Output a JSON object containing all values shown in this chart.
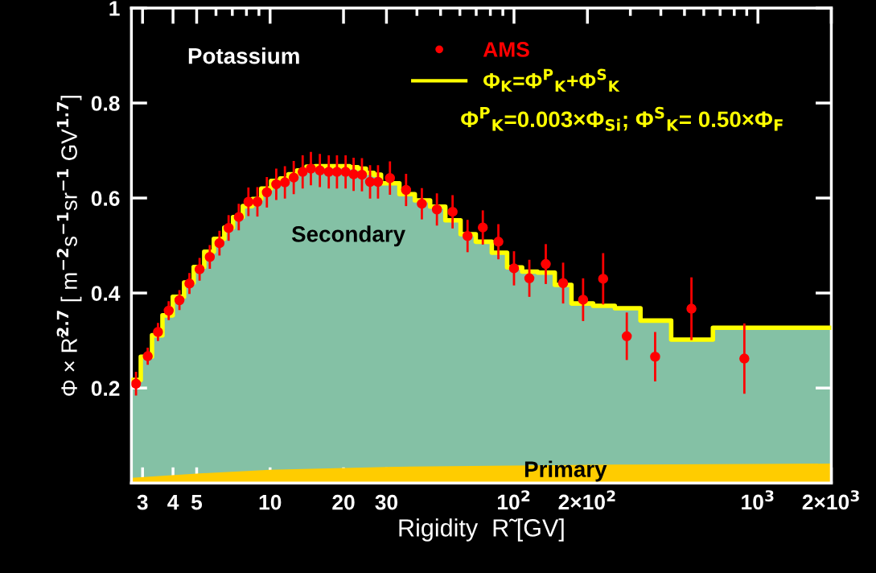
{
  "chart_data": {
    "type": "scatter",
    "xlabel": "Rigidity  R̃ [GV]",
    "ylabel": "Φ × R̃$^{2.7}$ [ m$^{−2}$s$^{−1}$sr$^{−1}$ GV$^{1.7}$]",
    "log": "x",
    "xlim": [
      2.7,
      2000
    ],
    "ylim": [
      0,
      1
    ],
    "xticks": [
      3,
      4,
      5,
      10,
      20,
      30,
      {
        "value": 100,
        "label": "10$^{2}$"
      },
      {
        "value": 200,
        "label": "2×10$^{2}$"
      },
      {
        "value": 1000,
        "label": "10$^{3}$"
      },
      {
        "value": 2000,
        "label": "2×10$^{3}$"
      }
    ],
    "yticks": [
      0.2,
      0.4,
      0.6,
      0.8,
      1
    ],
    "grid": false,
    "legend": "top",
    "annotations": [
      "Potassium",
      "Φ$^{P}$$_{K}$=0.003×Φ$_{Si}$; Φ$^{S}$$_{K}$= 0.50×Φ$_{F}$",
      "Secondary",
      "Primary"
    ],
    "series": [
      {
        "type": "area",
        "color": "#84c1a5",
        "x": [
          2.7,
          2.95,
          3.28,
          3.62,
          3.99,
          4.44,
          4.86,
          5.37,
          5.88,
          6.49,
          7.05,
          7.73,
          8.46,
          9.2,
          10.1,
          11.0,
          11.9,
          12.9,
          14.1,
          15.3,
          16.6,
          18.1,
          19.5,
          21.2,
          22.9,
          24.7,
          26.6,
          28.5,
          33.9,
          39.2,
          45.3,
          52.3,
          60.4,
          69.7,
          81.1,
          93.7,
          108,
          125,
          147,
          172,
          211,
          259,
          330,
          441,
          654,
          2000
        ],
        "values": [
          0.217,
          0.266,
          0.311,
          0.353,
          0.392,
          0.422,
          0.455,
          0.487,
          0.514,
          0.538,
          0.56,
          0.583,
          0.598,
          0.62,
          0.636,
          0.641,
          0.65,
          0.658,
          0.666,
          0.667,
          0.667,
          0.667,
          0.667,
          0.665,
          0.662,
          0.653,
          0.649,
          0.631,
          0.608,
          0.595,
          0.582,
          0.553,
          0.524,
          0.508,
          0.485,
          0.454,
          0.445,
          0.443,
          0.417,
          0.378,
          0.373,
          0.368,
          0.342,
          0.302,
          0.327,
          0.327
        ]
      },
      {
        "type": "area",
        "color": "#ffcc00",
        "x": [
          2.7,
          5,
          10,
          30,
          100,
          300,
          1000,
          2000
        ],
        "values": [
          0.011,
          0.02,
          0.028,
          0.034,
          0.037,
          0.039,
          0.04,
          0.041
        ]
      },
      {
        "type": "step",
        "name": "Φ$_{K}$=Φ$^{P}$$_{K}$+Φ$^{S}$$_{K}$",
        "color": "#ffff00",
        "x": [
          2.7,
          2.95,
          3.28,
          3.62,
          3.99,
          4.44,
          4.86,
          5.37,
          5.88,
          6.49,
          7.05,
          7.73,
          8.46,
          9.2,
          10.1,
          11.0,
          11.9,
          12.9,
          14.1,
          15.3,
          16.6,
          18.1,
          19.5,
          21.2,
          22.9,
          24.7,
          26.6,
          28.5,
          33.9,
          39.2,
          45.3,
          52.3,
          60.4,
          69.7,
          81.1,
          93.7,
          108,
          125,
          147,
          172,
          211,
          259,
          330,
          441,
          654,
          2000
        ],
        "values": [
          0.217,
          0.266,
          0.311,
          0.353,
          0.392,
          0.422,
          0.455,
          0.487,
          0.514,
          0.538,
          0.56,
          0.583,
          0.598,
          0.62,
          0.636,
          0.641,
          0.65,
          0.658,
          0.666,
          0.667,
          0.667,
          0.667,
          0.667,
          0.665,
          0.662,
          0.653,
          0.649,
          0.631,
          0.608,
          0.595,
          0.582,
          0.553,
          0.524,
          0.508,
          0.485,
          0.454,
          0.445,
          0.443,
          0.417,
          0.378,
          0.373,
          0.368,
          0.342,
          0.302,
          0.327,
          0.327
        ]
      },
      {
        "name": "AMS",
        "color": "#ff0000",
        "marker": "circle",
        "x": [
          2.82,
          3.15,
          3.47,
          3.84,
          4.25,
          4.67,
          5.14,
          5.66,
          6.2,
          6.76,
          7.44,
          8.15,
          8.87,
          9.7,
          10.6,
          11.5,
          12.5,
          13.6,
          14.7,
          16.0,
          17.4,
          18.8,
          20.4,
          22.0,
          23.8,
          25.7,
          27.7,
          31.0,
          36.1,
          41.9,
          48.3,
          56.0,
          64.5,
          74.5,
          86.3,
          100,
          115.6,
          135,
          159,
          192,
          232,
          290,
          379,
          534,
          880
        ],
        "values": [
          0.209,
          0.267,
          0.318,
          0.363,
          0.385,
          0.42,
          0.45,
          0.476,
          0.505,
          0.537,
          0.56,
          0.592,
          0.592,
          0.612,
          0.629,
          0.633,
          0.643,
          0.655,
          0.662,
          0.658,
          0.655,
          0.655,
          0.655,
          0.65,
          0.649,
          0.634,
          0.634,
          0.642,
          0.617,
          0.588,
          0.576,
          0.571,
          0.52,
          0.538,
          0.508,
          0.452,
          0.431,
          0.461,
          0.421,
          0.386,
          0.43,
          0.309,
          0.266,
          0.367,
          0.262
        ],
        "errors": [
          0.025,
          0.018,
          0.019,
          0.02,
          0.021,
          0.022,
          0.024,
          0.025,
          0.026,
          0.027,
          0.028,
          0.03,
          0.031,
          0.032,
          0.033,
          0.034,
          0.035,
          0.035,
          0.035,
          0.035,
          0.035,
          0.035,
          0.035,
          0.035,
          0.035,
          0.035,
          0.035,
          0.035,
          0.034,
          0.033,
          0.034,
          0.035,
          0.034,
          0.036,
          0.037,
          0.036,
          0.039,
          0.042,
          0.043,
          0.045,
          0.054,
          0.05,
          0.052,
          0.066,
          0.074
        ]
      }
    ]
  }
}
